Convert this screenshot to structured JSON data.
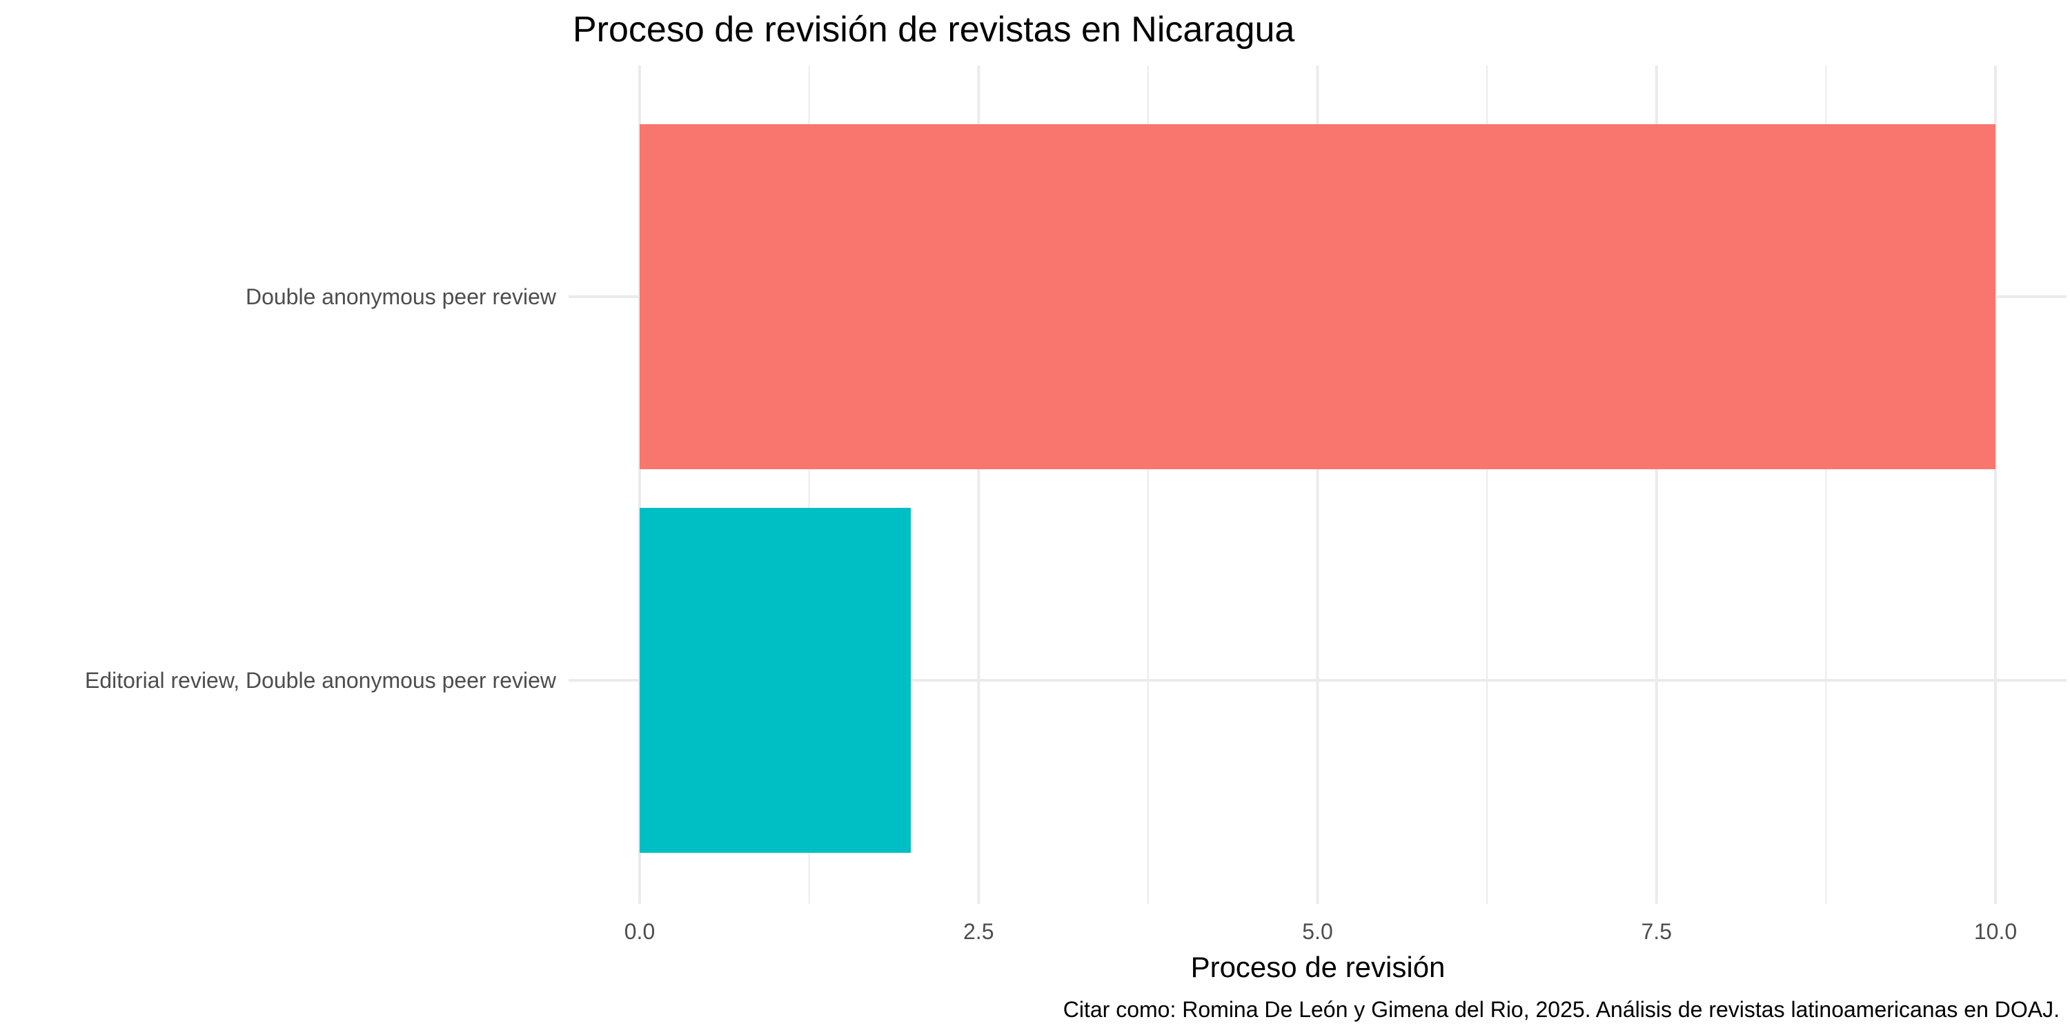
{
  "chart_data": {
    "type": "bar",
    "orientation": "horizontal",
    "title": "Proceso de revisión de revistas en Nicaragua",
    "xlabel": "Proceso de revisión",
    "ylabel": "",
    "caption": "Citar como: Romina De León y Gimena del Rio, 2025. Análisis de revistas latinoamericanas en DOAJ.",
    "categories": [
      "Double anonymous peer review",
      "Editorial review, Double anonymous peer review"
    ],
    "values": [
      10,
      2
    ],
    "colors": [
      "#F8766D",
      "#00BFC4"
    ],
    "xlim": [
      0,
      10.5
    ],
    "xticks": [
      0,
      2.5,
      5,
      7.5,
      10
    ],
    "xtick_labels": [
      "0.0",
      "2.5",
      "5.0",
      "7.5",
      "10.0"
    ],
    "grid": true,
    "legend": "none"
  }
}
